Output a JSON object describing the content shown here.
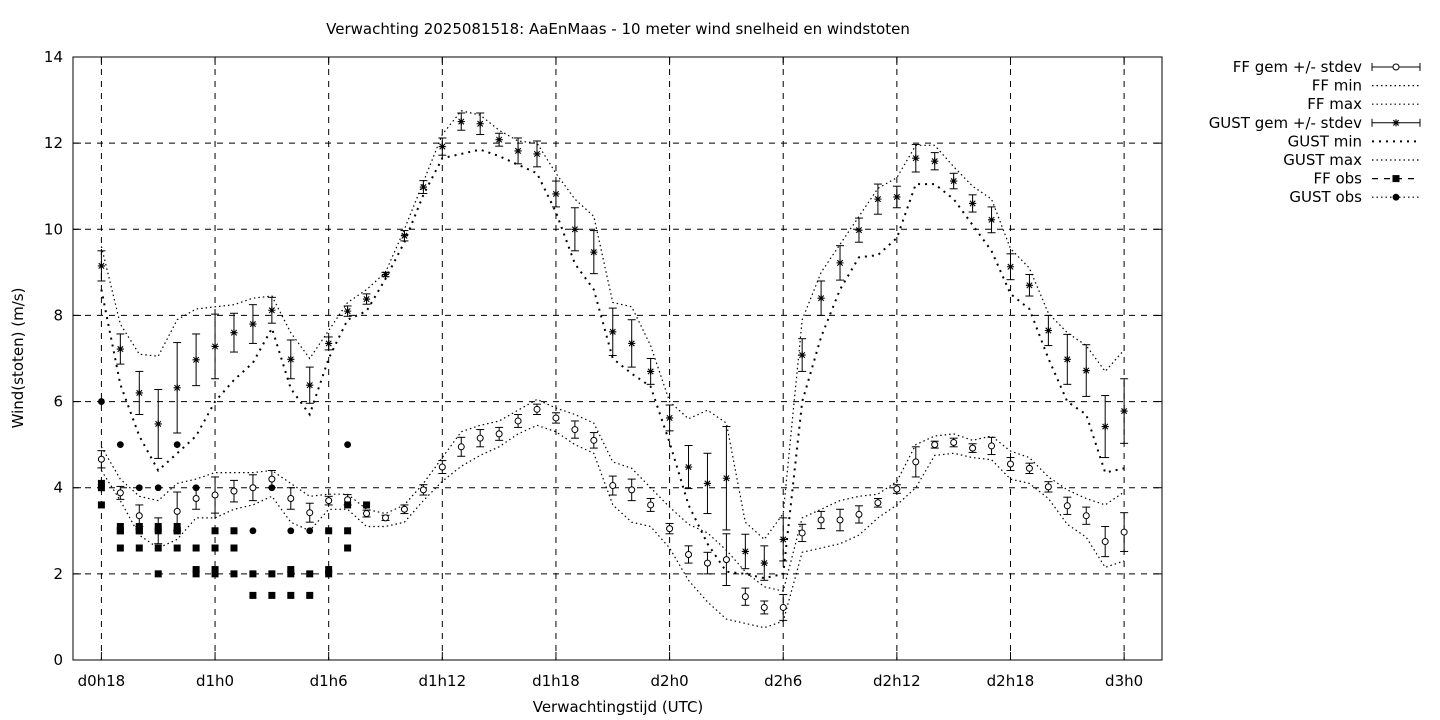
{
  "chart_data": {
    "type": "line",
    "title": "Verwachting 2025081518: AaEnMaas - 10 meter wind snelheid en windstoten",
    "xlabel": "Verwachtingstijd (UTC)",
    "ylabel": "Wind(stoten) (m/s)",
    "ylim": [
      0,
      14
    ],
    "yticks": [
      0,
      2,
      4,
      6,
      8,
      10,
      12,
      14
    ],
    "xlim": [
      -1.5,
      56
    ],
    "xticks": [
      {
        "x": 0,
        "label": "d0h18"
      },
      {
        "x": 6,
        "label": "d1h0"
      },
      {
        "x": 12,
        "label": "d1h6"
      },
      {
        "x": 18,
        "label": "d1h12"
      },
      {
        "x": 24,
        "label": "d1h18"
      },
      {
        "x": 30,
        "label": "d2h0"
      },
      {
        "x": 36,
        "label": "d2h6"
      },
      {
        "x": 42,
        "label": "d2h12"
      },
      {
        "x": 48,
        "label": "d2h18"
      },
      {
        "x": 54,
        "label": "d3h0"
      }
    ],
    "grid": true,
    "legend_position": "outside-right",
    "legend": [
      {
        "label": "FF gem +/- stdev",
        "style": "ff_mean"
      },
      {
        "label": "FF min",
        "style": "dotted"
      },
      {
        "label": "FF max",
        "style": "dotted"
      },
      {
        "label": "GUST gem +/- stdev",
        "style": "gust_mean"
      },
      {
        "label": "GUST min",
        "style": "dotted-coarse"
      },
      {
        "label": "GUST max",
        "style": "dotted"
      },
      {
        "label": "FF obs",
        "style": "ff_obs"
      },
      {
        "label": "GUST obs",
        "style": "gust_obs"
      }
    ],
    "series": [
      {
        "name": "FF gem +/- stdev",
        "x": [
          0,
          1,
          2,
          3,
          4,
          5,
          6,
          7,
          8,
          9,
          10,
          11,
          12,
          13,
          14,
          15,
          16,
          17,
          18,
          19,
          20,
          21,
          22,
          23,
          24,
          25,
          26,
          27,
          28,
          29,
          30,
          31,
          32,
          33,
          34,
          35,
          36,
          37,
          38,
          39,
          40,
          41,
          42,
          43,
          44,
          45,
          46,
          47,
          48,
          49,
          50,
          51,
          52,
          53,
          54
        ],
        "values": [
          4.66,
          3.88,
          3.35,
          3.0,
          3.45,
          3.75,
          3.83,
          3.92,
          4.0,
          4.2,
          3.75,
          3.42,
          3.7,
          3.72,
          3.4,
          3.3,
          3.5,
          3.95,
          4.48,
          4.95,
          5.15,
          5.25,
          5.55,
          5.82,
          5.62,
          5.35,
          5.1,
          4.05,
          3.95,
          3.6,
          3.05,
          2.45,
          2.25,
          2.33,
          1.47,
          1.22,
          1.22,
          2.95,
          3.25,
          3.25,
          3.38,
          3.65,
          3.97,
          4.6,
          5.0,
          5.05,
          4.92,
          4.97,
          4.55,
          4.45,
          4.02,
          3.58,
          3.35,
          2.75,
          2.97
        ],
        "stdev": [
          0.2,
          0.15,
          0.25,
          0.3,
          0.45,
          0.25,
          0.42,
          0.25,
          0.3,
          0.2,
          0.25,
          0.22,
          0.1,
          0.12,
          0.08,
          0.06,
          0.1,
          0.12,
          0.15,
          0.22,
          0.2,
          0.15,
          0.15,
          0.12,
          0.12,
          0.2,
          0.18,
          0.22,
          0.25,
          0.15,
          0.12,
          0.2,
          0.25,
          0.6,
          0.2,
          0.15,
          0.3,
          0.2,
          0.2,
          0.25,
          0.2,
          0.1,
          0.1,
          0.35,
          0.08,
          0.1,
          0.1,
          0.2,
          0.15,
          0.12,
          0.12,
          0.2,
          0.2,
          0.35,
          0.45
        ]
      },
      {
        "name": "FF min",
        "x": [
          0,
          1,
          2,
          3,
          4,
          5,
          6,
          7,
          8,
          9,
          10,
          11,
          12,
          13,
          14,
          15,
          16,
          17,
          18,
          19,
          20,
          21,
          22,
          23,
          24,
          25,
          26,
          27,
          28,
          29,
          30,
          31,
          32,
          33,
          34,
          35,
          36,
          37,
          38,
          39,
          40,
          41,
          42,
          43,
          44,
          45,
          46,
          47,
          48,
          49,
          50,
          51,
          52,
          53,
          54
        ],
        "values": [
          4.4,
          3.7,
          2.9,
          2.6,
          2.8,
          3.3,
          3.3,
          3.5,
          3.6,
          3.8,
          3.2,
          3.0,
          3.5,
          3.5,
          3.1,
          3.1,
          3.2,
          3.7,
          4.15,
          4.5,
          4.75,
          4.95,
          5.25,
          5.45,
          5.3,
          5.0,
          4.8,
          3.6,
          3.2,
          3.1,
          2.6,
          1.85,
          1.35,
          0.95,
          0.85,
          0.75,
          0.9,
          2.5,
          2.6,
          2.7,
          2.9,
          3.3,
          3.6,
          4.0,
          4.75,
          4.8,
          4.7,
          4.65,
          4.2,
          4.1,
          3.75,
          3.15,
          2.85,
          2.15,
          2.3
        ]
      },
      {
        "name": "FF max",
        "x": [
          0,
          1,
          2,
          3,
          4,
          5,
          6,
          7,
          8,
          9,
          10,
          11,
          12,
          13,
          14,
          15,
          16,
          17,
          18,
          19,
          20,
          21,
          22,
          23,
          24,
          25,
          26,
          27,
          28,
          29,
          30,
          31,
          32,
          33,
          34,
          35,
          36,
          37,
          38,
          39,
          40,
          41,
          42,
          43,
          44,
          45,
          46,
          47,
          48,
          49,
          50,
          51,
          52,
          53,
          54
        ],
        "values": [
          4.95,
          4.2,
          3.8,
          3.7,
          4.1,
          4.2,
          4.35,
          4.35,
          4.35,
          4.4,
          4.1,
          3.8,
          3.85,
          3.85,
          3.5,
          3.4,
          3.6,
          4.1,
          4.7,
          5.3,
          5.45,
          5.55,
          5.8,
          6.05,
          5.85,
          5.7,
          5.5,
          4.6,
          4.45,
          4.0,
          3.55,
          3.15,
          2.95,
          2.55,
          2.05,
          1.7,
          1.6,
          3.3,
          3.5,
          3.7,
          3.8,
          3.85,
          4.15,
          5.0,
          5.2,
          5.25,
          5.1,
          5.2,
          4.85,
          4.7,
          4.25,
          3.95,
          3.75,
          3.6,
          3.9
        ]
      },
      {
        "name": "GUST gem +/- stdev",
        "x": [
          0,
          1,
          2,
          3,
          4,
          5,
          6,
          7,
          8,
          9,
          10,
          11,
          12,
          13,
          14,
          15,
          16,
          17,
          18,
          19,
          20,
          21,
          22,
          23,
          24,
          25,
          26,
          27,
          28,
          29,
          30,
          31,
          32,
          33,
          34,
          35,
          36,
          37,
          38,
          39,
          40,
          41,
          42,
          43,
          44,
          45,
          46,
          47,
          48,
          49,
          50,
          51,
          52,
          53,
          54
        ],
        "values": [
          9.15,
          7.22,
          6.2,
          5.48,
          6.32,
          6.97,
          7.28,
          7.6,
          7.8,
          8.12,
          6.98,
          6.38,
          7.35,
          8.1,
          8.38,
          8.95,
          9.85,
          10.98,
          11.92,
          12.5,
          12.45,
          12.08,
          11.82,
          11.75,
          10.82,
          10.0,
          9.47,
          7.62,
          7.35,
          6.7,
          5.62,
          4.48,
          4.1,
          4.22,
          2.52,
          2.25,
          2.8,
          7.08,
          8.4,
          9.22,
          9.98,
          10.7,
          10.75,
          11.65,
          11.58,
          11.12,
          10.6,
          10.22,
          9.13,
          8.7,
          7.65,
          6.98,
          6.72,
          5.42,
          5.78
        ],
        "stdev": [
          0.35,
          0.35,
          0.5,
          0.8,
          1.05,
          0.6,
          0.75,
          0.45,
          0.45,
          0.3,
          0.45,
          0.42,
          0.15,
          0.12,
          0.12,
          0.05,
          0.12,
          0.15,
          0.2,
          0.2,
          0.25,
          0.15,
          0.3,
          0.3,
          0.3,
          0.5,
          0.5,
          0.55,
          0.55,
          0.3,
          0.3,
          0.5,
          0.7,
          1.2,
          0.4,
          0.4,
          0.5,
          0.38,
          0.4,
          0.4,
          0.28,
          0.35,
          0.25,
          0.32,
          0.2,
          0.18,
          0.2,
          0.3,
          0.3,
          0.25,
          0.35,
          0.58,
          0.6,
          0.72,
          0.75
        ]
      },
      {
        "name": "GUST min",
        "x": [
          0,
          1,
          2,
          3,
          4,
          5,
          6,
          7,
          8,
          9,
          10,
          11,
          12,
          13,
          14,
          15,
          16,
          17,
          18,
          19,
          20,
          21,
          22,
          23,
          24,
          25,
          26,
          27,
          28,
          29,
          30,
          31,
          32,
          33,
          34,
          35,
          36,
          37,
          38,
          39,
          40,
          41,
          42,
          43,
          44,
          45,
          46,
          47,
          48,
          49,
          50,
          51,
          52,
          53,
          54
        ],
        "values": [
          8.6,
          6.4,
          5.2,
          4.4,
          4.8,
          5.2,
          6.0,
          6.5,
          6.9,
          7.7,
          6.3,
          5.7,
          7.0,
          7.9,
          8.1,
          8.85,
          9.7,
          10.8,
          11.65,
          11.75,
          11.85,
          11.7,
          11.5,
          11.3,
          10.4,
          9.2,
          8.6,
          7.0,
          6.65,
          6.35,
          5.05,
          3.6,
          2.7,
          2.05,
          2.0,
          1.9,
          2.0,
          6.0,
          7.5,
          8.6,
          9.35,
          9.4,
          9.8,
          11.05,
          11.05,
          10.7,
          10.1,
          9.5,
          8.5,
          8.15,
          7.0,
          6.0,
          5.7,
          4.35,
          4.45
        ]
      },
      {
        "name": "GUST max",
        "x": [
          0,
          1,
          2,
          3,
          4,
          5,
          6,
          7,
          8,
          9,
          10,
          11,
          12,
          13,
          14,
          15,
          16,
          17,
          18,
          19,
          20,
          21,
          22,
          23,
          24,
          25,
          26,
          27,
          28,
          29,
          30,
          31,
          32,
          33,
          34,
          35,
          36,
          37,
          38,
          39,
          40,
          41,
          42,
          43,
          44,
          45,
          46,
          47,
          48,
          49,
          50,
          51,
          52,
          53,
          54
        ],
        "values": [
          9.6,
          7.8,
          7.1,
          7.05,
          7.9,
          8.15,
          8.2,
          8.25,
          8.4,
          8.45,
          7.6,
          7.0,
          7.65,
          8.3,
          8.6,
          9.0,
          10.0,
          11.1,
          12.2,
          12.75,
          12.65,
          12.3,
          12.05,
          12.0,
          11.3,
          10.7,
          10.3,
          8.3,
          8.2,
          7.3,
          6.0,
          5.6,
          5.8,
          5.5,
          3.2,
          2.8,
          3.4,
          7.9,
          9.0,
          9.65,
          10.3,
          10.95,
          11.2,
          11.95,
          11.95,
          11.45,
          11.0,
          10.7,
          9.55,
          9.1,
          8.05,
          7.6,
          7.3,
          6.7,
          7.2
        ]
      },
      {
        "name": "FF obs",
        "x": [
          0,
          0,
          0,
          1,
          1,
          1,
          1,
          2,
          2,
          2,
          2,
          3,
          3,
          3,
          3,
          4,
          4,
          4,
          4,
          5,
          5,
          5,
          6,
          6,
          6,
          6,
          7,
          7,
          7,
          8,
          8,
          9,
          9,
          10,
          10,
          10,
          11,
          11,
          12,
          12,
          12,
          13,
          13,
          13,
          14
        ],
        "values": [
          4.1,
          4.0,
          3.6,
          3.1,
          3.0,
          2.6,
          3.0,
          3.1,
          3.0,
          2.6,
          3.0,
          3.1,
          3.0,
          2.6,
          2.0,
          3.1,
          3.0,
          2.6,
          3.0,
          2.6,
          2.1,
          2.0,
          3.0,
          2.6,
          2.1,
          2.0,
          3.0,
          2.6,
          2.0,
          2.0,
          1.5,
          2.0,
          1.5,
          2.1,
          2.0,
          1.5,
          2.0,
          1.5,
          2.1,
          2.0,
          3.0,
          3.6,
          3.0,
          2.6,
          3.6
        ]
      },
      {
        "name": "GUST obs",
        "x": [
          0,
          1,
          2,
          3,
          4,
          5,
          6,
          7,
          8,
          9,
          10,
          11,
          12,
          13
        ],
        "values": [
          6.0,
          5.0,
          4.0,
          4.0,
          5.0,
          4.0,
          3.0,
          3.0,
          3.0,
          4.0,
          3.0,
          3.0,
          3.0,
          5.0
        ]
      }
    ]
  }
}
